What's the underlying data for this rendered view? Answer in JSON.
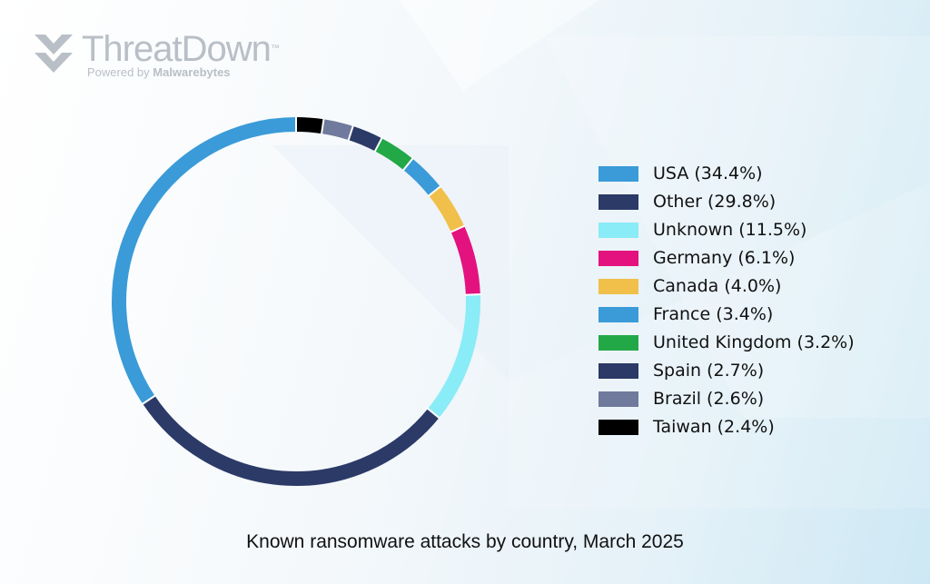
{
  "brand": {
    "name": "ThreatDown",
    "trademark": "™",
    "tagline_prefix": "Powered by ",
    "tagline_brand": "Malwarebytes"
  },
  "chart_data": {
    "type": "pie",
    "style": "donut",
    "title": "Known ransomware attacks by country, March 2025",
    "legend_position": "right",
    "slices": [
      {
        "label": "USA (34.4%)",
        "name": "USA",
        "value": 34.4,
        "color": "#3a9bd8"
      },
      {
        "label": "Other (29.8%)",
        "name": "Other",
        "value": 29.8,
        "color": "#2b3a67"
      },
      {
        "label": "Unknown (11.5%)",
        "name": "Unknown",
        "value": 11.5,
        "color": "#8aecf6"
      },
      {
        "label": "Germany (6.1%)",
        "name": "Germany",
        "value": 6.1,
        "color": "#e3127f"
      },
      {
        "label": "Canada (4.0%)",
        "name": "Canada",
        "value": 4.0,
        "color": "#f0c04b"
      },
      {
        "label": "France (3.4%)",
        "name": "France",
        "value": 3.4,
        "color": "#3a9bd8"
      },
      {
        "label": "United Kingdom (3.2%)",
        "name": "United Kingdom",
        "value": 3.2,
        "color": "#23a848"
      },
      {
        "label": "Spain (2.7%)",
        "name": "Spain",
        "value": 2.7,
        "color": "#2b3a67"
      },
      {
        "label": "Brazil (2.6%)",
        "name": "Brazil",
        "value": 2.6,
        "color": "#6f7a9c"
      },
      {
        "label": "Taiwan (2.4%)",
        "name": "Taiwan",
        "value": 2.4,
        "color": "#000000"
      }
    ]
  }
}
